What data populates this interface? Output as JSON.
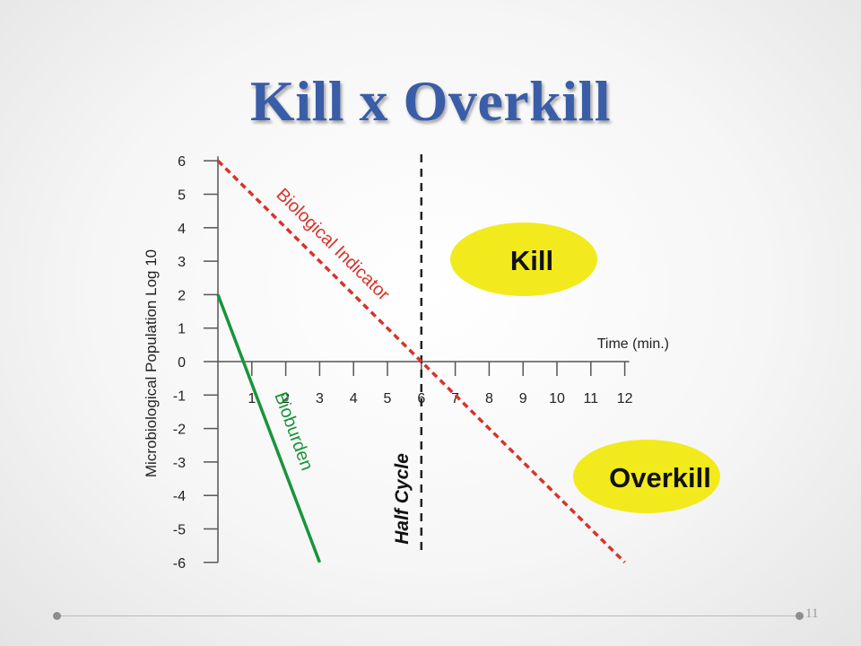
{
  "slide": {
    "title": "Kill x Overkill",
    "page_number": "11"
  },
  "chart_data": {
    "type": "line",
    "title": "",
    "xlabel": "Time (min.)",
    "ylabel": "Microbiological Population Log 10",
    "xlim": [
      0,
      12
    ],
    "ylim": [
      -6,
      6
    ],
    "x_ticks": [
      "1",
      "2",
      "3",
      "4",
      "5",
      "6",
      "7",
      "8",
      "9",
      "10",
      "11",
      "12"
    ],
    "y_ticks": [
      "6",
      "5",
      "4",
      "3",
      "2",
      "1",
      "0",
      "-1",
      "-2",
      "-3",
      "-4",
      "-5",
      "-6"
    ],
    "grid": false,
    "series": [
      {
        "name": "Biological Indicator",
        "color": "#d9322b",
        "style": "dashed",
        "x": [
          0,
          12
        ],
        "y": [
          6,
          -6
        ]
      },
      {
        "name": "Bioburden",
        "color": "#18953a",
        "style": "solid",
        "x": [
          0,
          3
        ],
        "y": [
          2,
          -6
        ]
      }
    ],
    "vlines": [
      {
        "label": "Half Cycle",
        "x": 6,
        "color": "#222222",
        "style": "dashed"
      }
    ],
    "annotations": [
      {
        "text": "Kill",
        "color": "#f2ea1c"
      },
      {
        "text": "Overkill",
        "color": "#f2ea1c"
      }
    ]
  }
}
